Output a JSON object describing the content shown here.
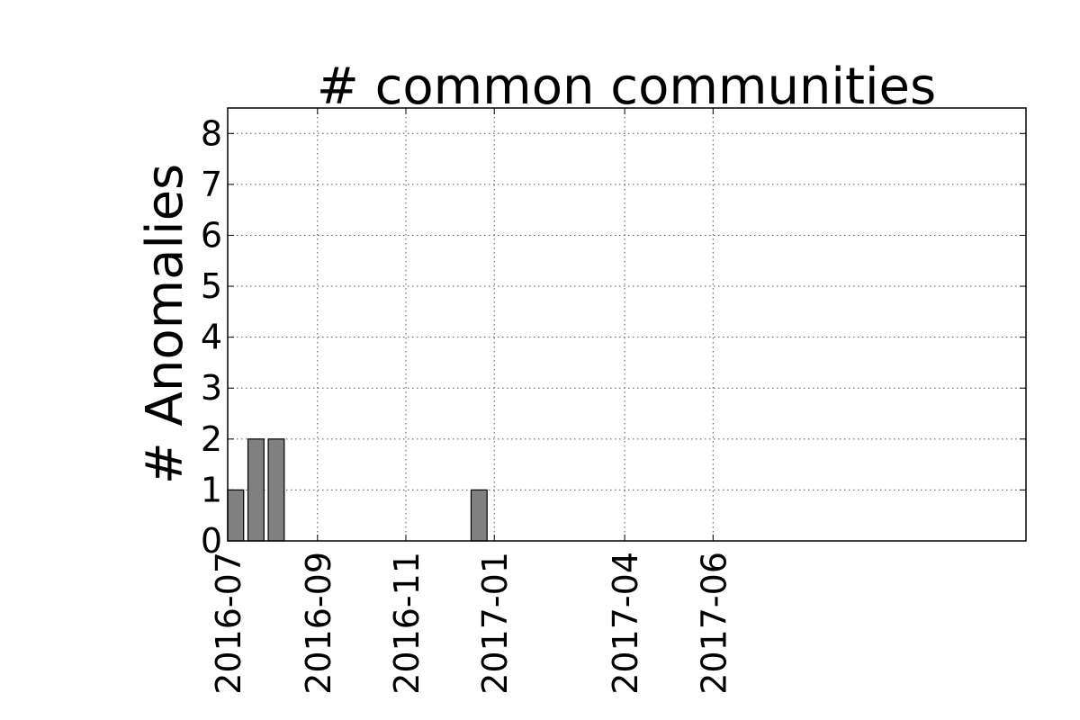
{
  "chart_data": {
    "type": "bar",
    "title": "# common communities",
    "xlabel": "",
    "ylabel": "# Anomalies",
    "ylim": [
      0,
      8.5
    ],
    "yticks": [
      "0",
      "1",
      "2",
      "3",
      "4",
      "5",
      "6",
      "7",
      "8"
    ],
    "xticks": [
      "2016-07",
      "2016-09",
      "2016-11",
      "2017-01",
      "2017-04",
      "2017-06"
    ],
    "grid": true,
    "bar_color": "#808080",
    "x": [
      "2016-07-01",
      "2016-07-15",
      "2016-07-29",
      "2016-08-12",
      "2016-08-26",
      "2016-09-09",
      "2016-09-23",
      "2016-10-07",
      "2016-10-21",
      "2016-11-04",
      "2016-11-18",
      "2016-12-02",
      "2016-12-16",
      "2016-12-30",
      "2017-01-13",
      "2017-01-27",
      "2017-02-10",
      "2017-02-24",
      "2017-03-10",
      "2017-03-24",
      "2017-04-07",
      "2017-04-21",
      "2017-05-05",
      "2017-05-19",
      "2017-06-02",
      "2017-06-16",
      "2017-06-30",
      "2017-07-14",
      "2017-07-28",
      "2017-08-11",
      "2017-08-25",
      "2017-09-08",
      "2017-09-22",
      "2017-10-06",
      "2017-10-20",
      "2017-11-03",
      "2017-11-17",
      "2017-12-01",
      "2017-12-15",
      "2017-12-29"
    ],
    "values": [
      1,
      2,
      2,
      0,
      0,
      0,
      0,
      0,
      0,
      0,
      0,
      0,
      1,
      0,
      0,
      0,
      0,
      0,
      0,
      0,
      0,
      0,
      0,
      0,
      0,
      0,
      0,
      0,
      0,
      0,
      0,
      0,
      0,
      0,
      0,
      0,
      0,
      0,
      0,
      0
    ]
  }
}
